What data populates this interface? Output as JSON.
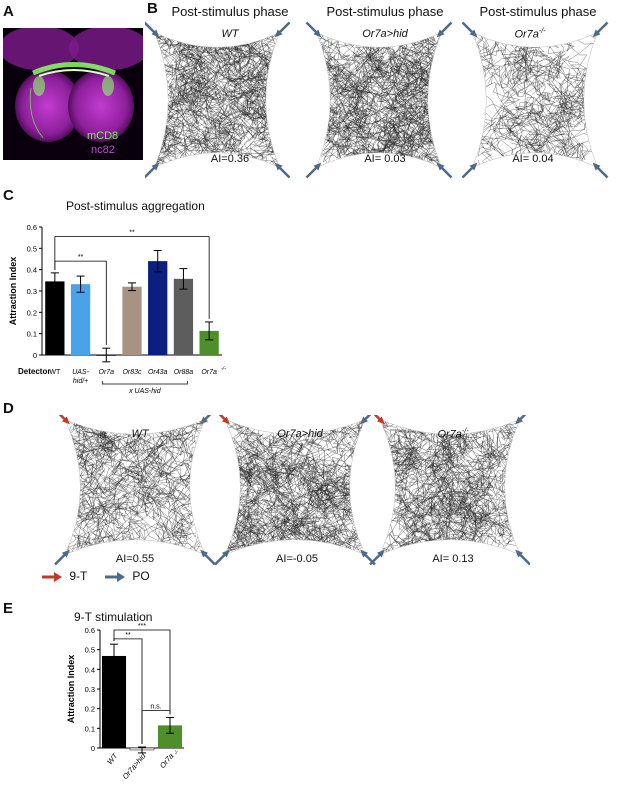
{
  "panels": {
    "a": "A",
    "b": "B",
    "c": "C",
    "d": "D",
    "e": "E"
  },
  "brain": {
    "label_green": "mCD8",
    "label_magenta": "nc82",
    "color_green": "#66ff44",
    "color_magenta": "#b52fc2"
  },
  "panel_b": {
    "arenas": [
      {
        "title": "Post-stimulus phase",
        "genotype": "WT",
        "ai": "AI=0.36"
      },
      {
        "title": "Post-stimulus phase",
        "genotype": "Or7a>hid",
        "ai": "AI= 0.03"
      },
      {
        "title": "Post-stimulus phase",
        "genotype": "Or7a",
        "genotype_sup": "-/-",
        "ai": "AI= 0.04"
      }
    ]
  },
  "panel_d": {
    "arenas": [
      {
        "genotype": "WT",
        "ai": "AI=0.55"
      },
      {
        "genotype": "Or7a>hid",
        "ai": "AI=-0.05"
      },
      {
        "genotype": "Or7a",
        "genotype_sup": "-/-",
        "ai": "AI= 0.13"
      }
    ],
    "legend": [
      {
        "label": "9-T",
        "color": "#c0392b"
      },
      {
        "label": "PO",
        "color": "#4f6a86"
      }
    ]
  },
  "chart_data": [
    {
      "type": "bar",
      "title": "Post-stimulus aggregation",
      "ylabel": "Attraction Index",
      "xlabel": "",
      "ylim": [
        0,
        0.6
      ],
      "yticks": [
        "0",
        "0.1",
        "0.2",
        "0.3",
        "0.4",
        "0.5",
        "0.6"
      ],
      "row_label": "Detector",
      "categories": [
        "WT",
        "UAS-hid/+",
        "Or7a",
        "Or83c",
        "Or43a",
        "Or88a",
        "Or7a-/-"
      ],
      "category_display": [
        "WT",
        "UAS-",
        "Or7a",
        "Or83c",
        "Or43a",
        "Or88a",
        "Or7a"
      ],
      "category_display2": [
        "",
        "hid/+",
        "",
        "",
        "",
        "",
        ""
      ],
      "group_label": "x UAS-hid",
      "values": [
        0.345,
        0.332,
        0.0,
        0.32,
        0.44,
        0.357,
        0.113
      ],
      "errors": [
        0.04,
        0.038,
        0.032,
        0.018,
        0.05,
        0.048,
        0.042
      ],
      "colors": [
        "#000000",
        "#4aa3e8",
        "#ffffff",
        "#a89383",
        "#0a1f80",
        "#5d5d5d",
        "#4e8f2a"
      ],
      "significance": [
        {
          "from": "WT",
          "to": "Or7a",
          "label": "**"
        },
        {
          "from": "WT",
          "to": "Or7a-/-",
          "label": "**"
        }
      ]
    },
    {
      "type": "bar",
      "title": "9-T stimulation",
      "ylabel": "Attraction Index",
      "xlabel": "",
      "ylim": [
        0,
        0.6
      ],
      "yticks": [
        "0",
        "0.1",
        "0.2",
        "0.3",
        "0.4",
        "0.5",
        "0.6"
      ],
      "categories": [
        "WT",
        "Or7a>hid",
        "Or7a-/-"
      ],
      "category_display": [
        "WT",
        "Or7a>hid",
        "Or7a"
      ],
      "values": [
        0.468,
        -0.01,
        0.115
      ],
      "errors": [
        0.06,
        0.015,
        0.04
      ],
      "colors": [
        "#000000",
        "#ffffff",
        "#4e8f2a"
      ],
      "significance": [
        {
          "from": "WT",
          "to": "Or7a>hid",
          "label": "**"
        },
        {
          "from": "WT",
          "to": "Or7a-/-",
          "label": "***"
        },
        {
          "from": "Or7a>hid",
          "to": "Or7a-/-",
          "label": "n.s."
        }
      ]
    }
  ]
}
